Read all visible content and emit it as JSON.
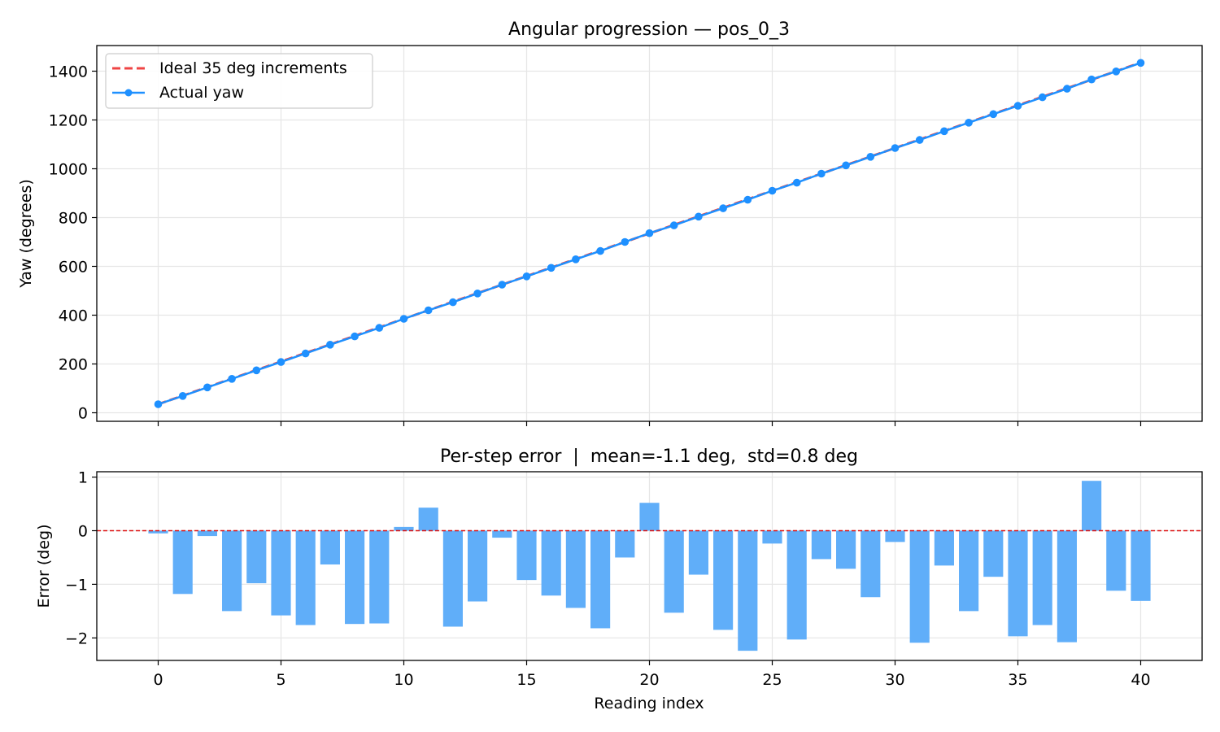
{
  "chart_data": [
    {
      "type": "line",
      "title": "Angular progression — pos_0_3",
      "xlabel": "",
      "ylabel": "Yaw (degrees)",
      "xlim": [
        -2.5,
        42.5
      ],
      "ylim": [
        -35,
        1505
      ],
      "x_ticks": [
        0,
        5,
        10,
        15,
        20,
        25,
        30,
        35,
        40
      ],
      "y_ticks": [
        0,
        200,
        400,
        600,
        800,
        1000,
        1200,
        1400
      ],
      "y_tick_labels": [
        "0",
        "200",
        "400",
        "600",
        "800",
        "1000",
        "1200",
        "1400"
      ],
      "grid": true,
      "legend_position": "top-left",
      "x": [
        0,
        1,
        2,
        3,
        4,
        5,
        6,
        7,
        8,
        9,
        10,
        11,
        12,
        13,
        14,
        15,
        16,
        17,
        18,
        19,
        20,
        21,
        22,
        23,
        24,
        25,
        26,
        27,
        28,
        29,
        30,
        31,
        32,
        33,
        34,
        35,
        36,
        37,
        38,
        39,
        40
      ],
      "series": [
        {
          "name": "Ideal 35 deg increments",
          "style": "dashed",
          "color": "#ef4444",
          "values": [
            35,
            70,
            105,
            140,
            175,
            210,
            245,
            280,
            315,
            350,
            385,
            420,
            455,
            490,
            525,
            560,
            595,
            630,
            665,
            700,
            735,
            770,
            805,
            840,
            875,
            910,
            945,
            980,
            1015,
            1050,
            1085,
            1120,
            1155,
            1190,
            1225,
            1260,
            1295,
            1330,
            1365,
            1400,
            1435
          ]
        },
        {
          "name": "Actual yaw",
          "style": "line-marker",
          "color": "#1e90ff",
          "values": [
            35,
            69,
            104,
            139,
            174,
            208,
            243,
            279,
            313,
            348,
            385,
            420,
            453,
            489,
            525,
            559,
            594,
            629,
            663,
            700,
            736,
            768,
            804,
            838,
            873,
            910,
            943,
            980,
            1014,
            1049,
            1085,
            1118,
            1154,
            1189,
            1224,
            1258,
            1293,
            1328,
            1366,
            1399,
            1434
          ]
        }
      ]
    },
    {
      "type": "bar",
      "title": "Per-step error  |  mean=-1.1 deg,  std=0.8 deg",
      "xlabel": "Reading index",
      "ylabel": "Error (deg)",
      "xlim": [
        -2.5,
        42.5
      ],
      "ylim": [
        -2.42,
        1.1
      ],
      "x_ticks": [
        0,
        5,
        10,
        15,
        20,
        25,
        30,
        35,
        40
      ],
      "y_ticks": [
        1,
        0,
        -1,
        -2
      ],
      "y_tick_labels": [
        "1",
        "0",
        "−1",
        "−2"
      ],
      "grid": true,
      "bar_color": "#60aef9",
      "reference_line": {
        "y": 0,
        "color": "#dd1111",
        "style": "dashed"
      },
      "x": [
        0,
        1,
        2,
        3,
        4,
        5,
        6,
        7,
        8,
        9,
        10,
        11,
        12,
        13,
        14,
        15,
        16,
        17,
        18,
        19,
        20,
        21,
        22,
        23,
        24,
        25,
        26,
        27,
        28,
        29,
        30,
        31,
        32,
        33,
        34,
        35,
        36,
        37,
        38,
        39,
        40
      ],
      "values": [
        -0.05,
        -1.18,
        -0.1,
        -1.5,
        -0.98,
        -1.58,
        -1.76,
        -0.63,
        -1.74,
        -1.73,
        0.07,
        0.43,
        -1.79,
        -1.32,
        -0.13,
        -0.92,
        -1.21,
        -1.44,
        -1.82,
        -0.5,
        0.52,
        -1.53,
        -0.82,
        -1.85,
        -2.24,
        -0.24,
        -2.03,
        -0.53,
        -0.71,
        -1.24,
        -0.21,
        -2.09,
        -0.65,
        -1.5,
        -0.86,
        -1.97,
        -1.76,
        -2.08,
        0.93,
        -1.12,
        -1.31
      ]
    }
  ]
}
